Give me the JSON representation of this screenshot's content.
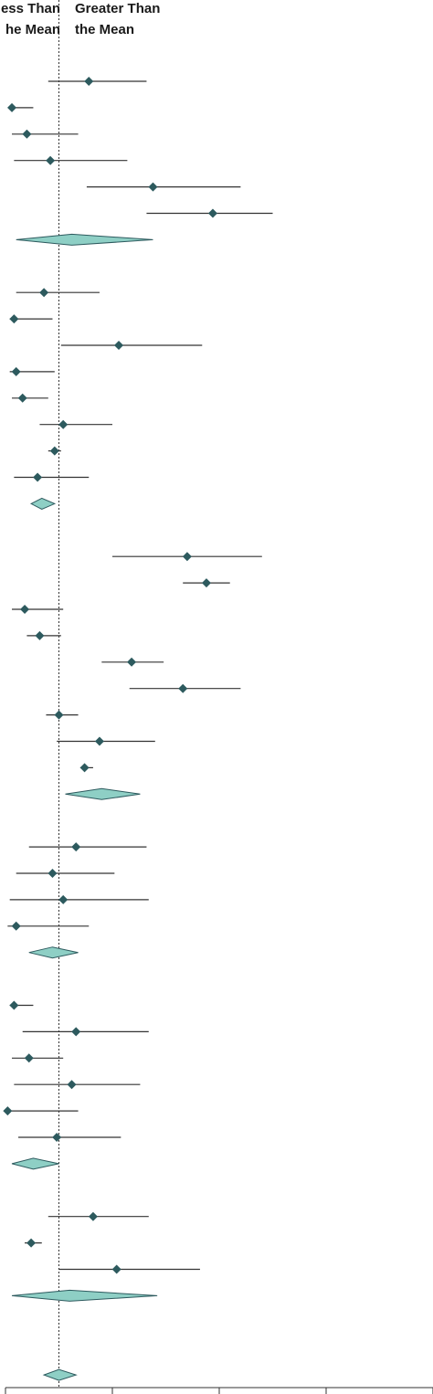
{
  "chart_data": {
    "type": "forest",
    "header_left": [
      "ess Than",
      "he Mean"
    ],
    "header_right": [
      "Greater Than",
      "the Mean"
    ],
    "reference_line": 0,
    "xlim": [
      -0.25,
      1.75
    ],
    "axis_ticks": [
      -0.25,
      0.25,
      0.75,
      1.25,
      1.75
    ],
    "tick_labels_visible": false,
    "colors": {
      "marker": "#2d5a5e",
      "summary_fill": "#8ecfc5",
      "summary_stroke": "#2d5a5e",
      "line": "#333333"
    },
    "groups": [
      {
        "studies": [
          {
            "est": 0.14,
            "lo": -0.05,
            "hi": 0.41
          },
          {
            "est": -0.22,
            "lo": -0.23,
            "hi": -0.12
          },
          {
            "est": -0.15,
            "lo": -0.22,
            "hi": 0.09
          },
          {
            "est": -0.04,
            "lo": -0.21,
            "hi": 0.32
          },
          {
            "est": 0.44,
            "lo": 0.13,
            "hi": 0.85
          },
          {
            "est": 0.72,
            "lo": 0.41,
            "hi": 1.0
          }
        ],
        "summary": {
          "est": 0.06,
          "lo": -0.2,
          "hi": 0.44
        }
      },
      {
        "studies": [
          {
            "est": -0.07,
            "lo": -0.2,
            "hi": 0.19
          },
          {
            "est": -0.21,
            "lo": -0.23,
            "hi": -0.03
          },
          {
            "est": 0.28,
            "lo": 0.01,
            "hi": 0.67
          },
          {
            "est": -0.2,
            "lo": -0.23,
            "hi": -0.02
          },
          {
            "est": -0.17,
            "lo": -0.22,
            "hi": -0.05
          },
          {
            "est": 0.02,
            "lo": -0.09,
            "hi": 0.25
          },
          {
            "est": -0.02,
            "lo": -0.05,
            "hi": 0.01
          },
          {
            "est": -0.1,
            "lo": -0.21,
            "hi": 0.14
          }
        ],
        "summary": {
          "est": -0.08,
          "lo": -0.13,
          "hi": -0.02
        }
      },
      {
        "studies": [
          {
            "est": 0.6,
            "lo": 0.25,
            "hi": 0.95
          },
          {
            "est": 0.69,
            "lo": 0.58,
            "hi": 0.8
          },
          {
            "est": -0.16,
            "lo": -0.22,
            "hi": 0.02
          },
          {
            "est": -0.09,
            "lo": -0.15,
            "hi": 0.01
          },
          {
            "est": 0.34,
            "lo": 0.2,
            "hi": 0.49
          },
          {
            "est": 0.58,
            "lo": 0.33,
            "hi": 0.85
          },
          {
            "est": 0.0,
            "lo": -0.06,
            "hi": 0.09
          },
          {
            "est": 0.19,
            "lo": -0.01,
            "hi": 0.45
          },
          {
            "est": 0.12,
            "lo": 0.1,
            "hi": 0.16
          }
        ],
        "summary": {
          "est": 0.2,
          "lo": 0.03,
          "hi": 0.38
        }
      },
      {
        "studies": [
          {
            "est": 0.08,
            "lo": -0.14,
            "hi": 0.41
          },
          {
            "est": -0.03,
            "lo": -0.2,
            "hi": 0.26
          },
          {
            "est": 0.02,
            "lo": -0.23,
            "hi": 0.42
          },
          {
            "est": -0.2,
            "lo": -0.24,
            "hi": 0.14
          }
        ],
        "summary": {
          "est": -0.03,
          "lo": -0.14,
          "hi": 0.09
        }
      },
      {
        "studies": [
          {
            "est": -0.21,
            "lo": -0.23,
            "hi": -0.12
          },
          {
            "est": 0.08,
            "lo": -0.17,
            "hi": 0.42
          },
          {
            "est": -0.14,
            "lo": -0.22,
            "hi": 0.02
          },
          {
            "est": 0.06,
            "lo": -0.21,
            "hi": 0.38
          },
          {
            "est": -0.24,
            "lo": -0.24,
            "hi": 0.09
          },
          {
            "est": -0.01,
            "lo": -0.19,
            "hi": 0.29
          }
        ],
        "summary": {
          "est": -0.12,
          "lo": -0.22,
          "hi": 0.0
        }
      },
      {
        "studies": [
          {
            "est": 0.16,
            "lo": -0.05,
            "hi": 0.42
          },
          {
            "est": -0.13,
            "lo": -0.16,
            "hi": -0.08
          },
          {
            "est": 0.27,
            "lo": 0.0,
            "hi": 0.66
          }
        ],
        "summary": {
          "est": 0.05,
          "lo": -0.22,
          "hi": 0.46
        }
      },
      {
        "studies": [],
        "summary": {
          "est": 0.0,
          "lo": -0.07,
          "hi": 0.08
        }
      }
    ]
  }
}
